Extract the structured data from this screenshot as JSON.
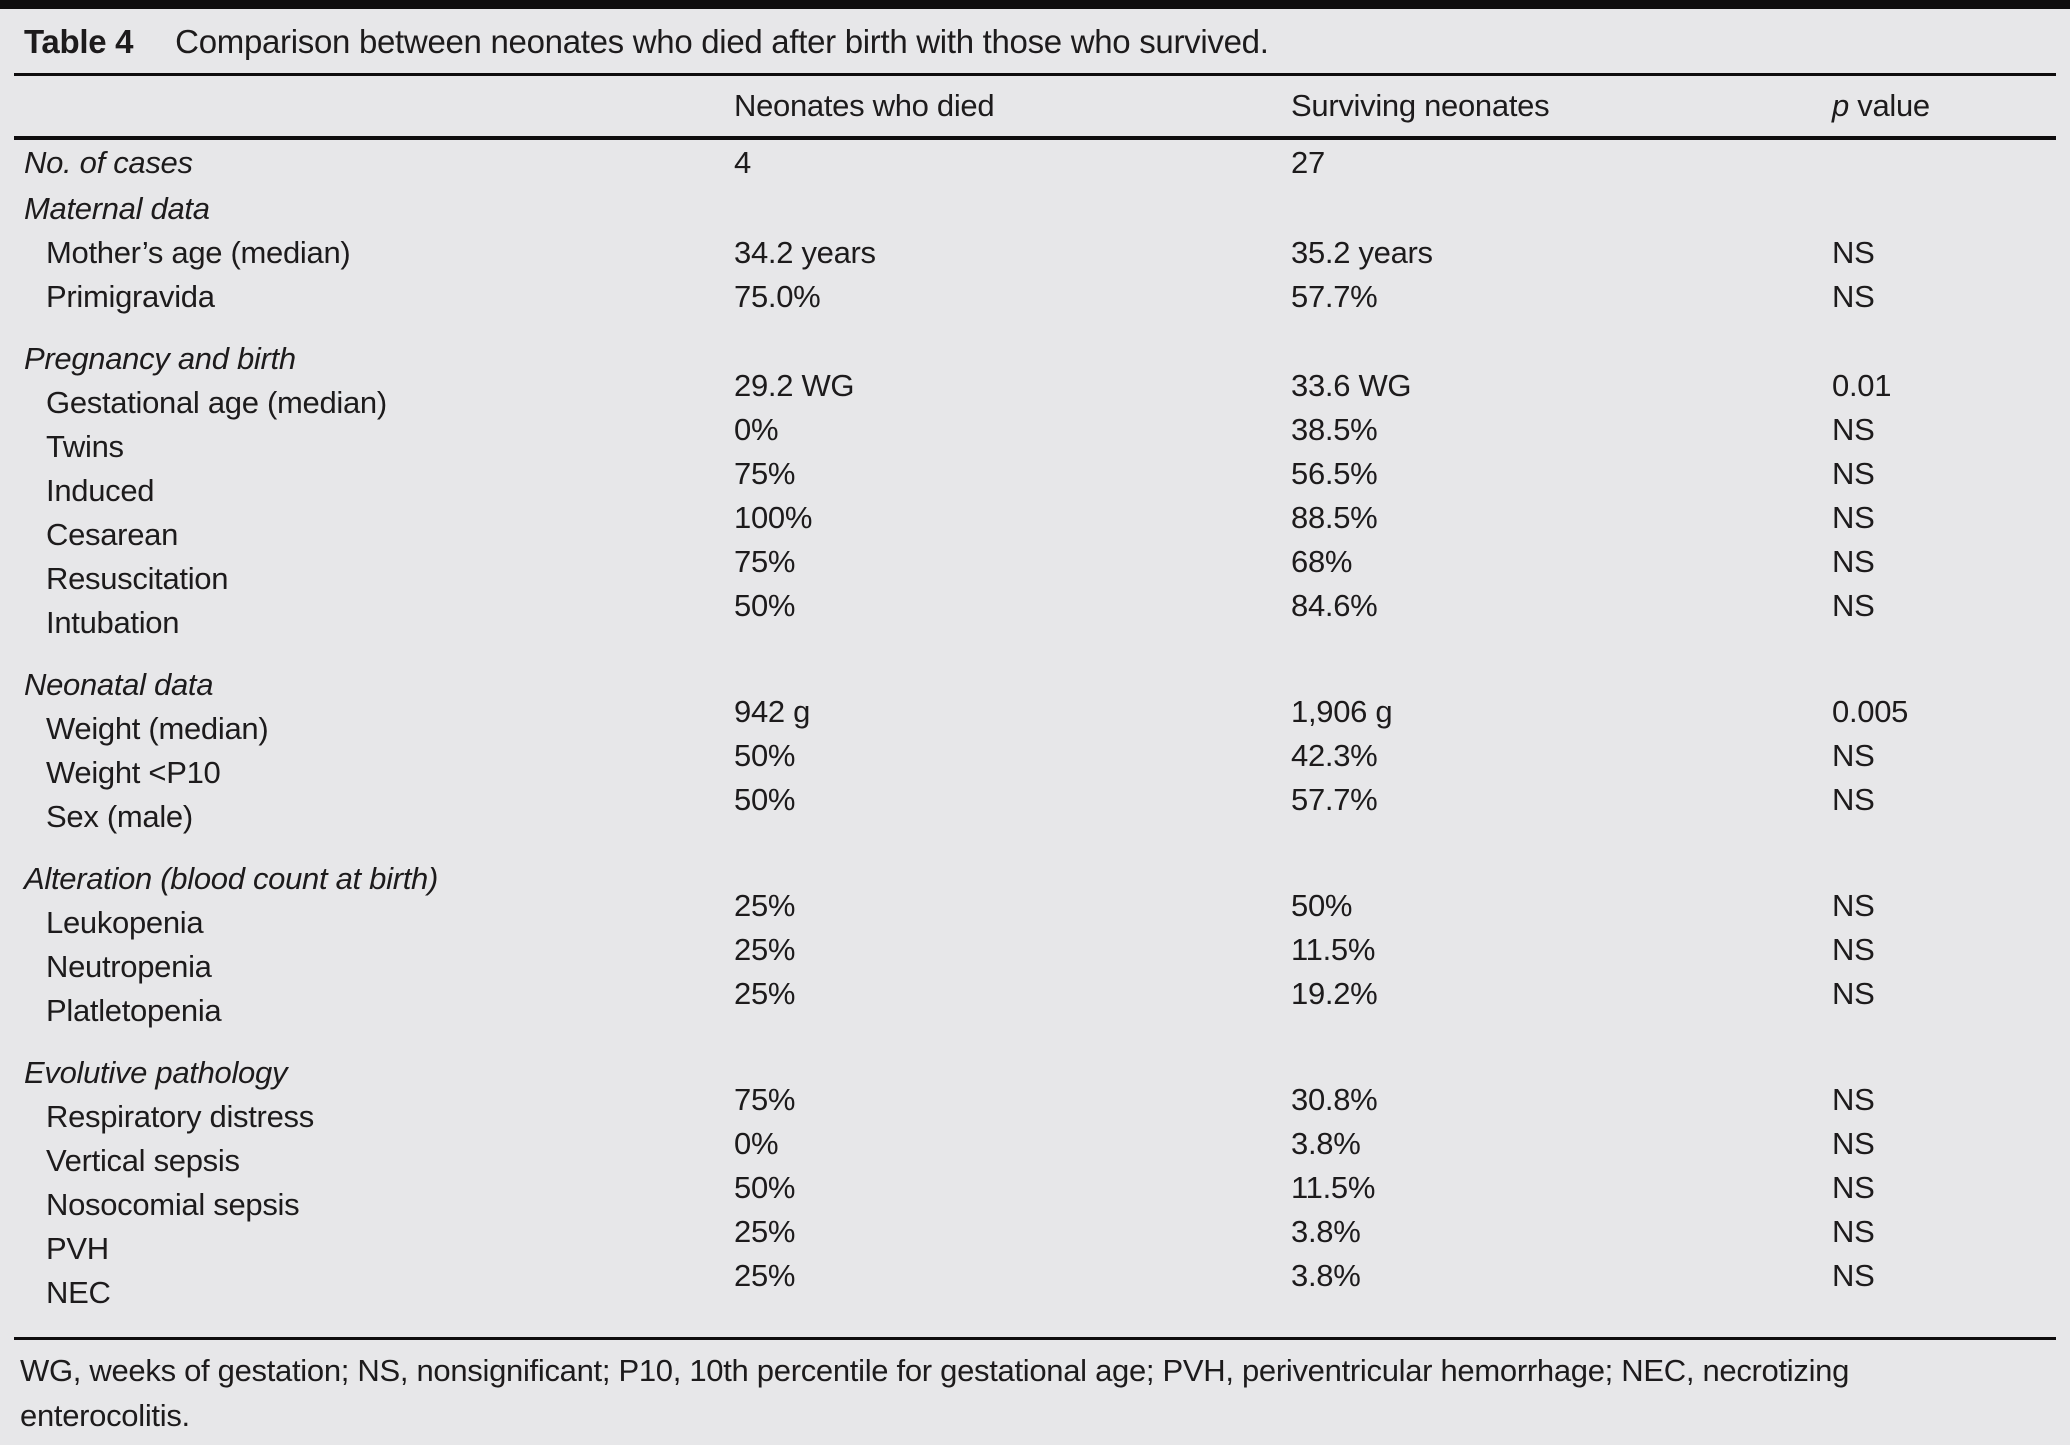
{
  "table": {
    "title_label": "Table 4",
    "title_caption": "Comparison between neonates who died after birth with those who survived.",
    "columns": {
      "label": "",
      "died": "Neonates who died",
      "survived": "Surviving neonates",
      "p_prefix": "p",
      "p_suffix": " value"
    },
    "sections": [
      {
        "header": "",
        "offset": false,
        "rows": [
          {
            "label": "No. of cases",
            "italic": true,
            "indent": false,
            "died": "4",
            "survived": "27",
            "p": ""
          }
        ]
      },
      {
        "header": "Maternal data",
        "offset": false,
        "rows": [
          {
            "label": "Mother’s age (median)",
            "died": "34.2 years",
            "survived": "35.2 years",
            "p": "NS"
          },
          {
            "label": "Primigravida",
            "died": "75.0%",
            "survived": "57.7%",
            "p": "NS"
          }
        ]
      },
      {
        "header": "Pregnancy and birth",
        "offset": true,
        "rows": [
          {
            "label": "Gestational age (median)",
            "died": "29.2 WG",
            "survived": "33.6 WG",
            "p": "0.01"
          },
          {
            "label": "Twins",
            "died": "0%",
            "survived": "38.5%",
            "p": "NS"
          },
          {
            "label": "Induced",
            "died": "75%",
            "survived": "56.5%",
            "p": "NS"
          },
          {
            "label": "Cesarean",
            "died": "100%",
            "survived": "88.5%",
            "p": "NS"
          },
          {
            "label": "Resuscitation",
            "died": "75%",
            "survived": "68%",
            "p": "NS"
          },
          {
            "label": "Intubation",
            "died": "50%",
            "survived": "84.6%",
            "p": "NS"
          }
        ]
      },
      {
        "header": "Neonatal data",
        "offset": true,
        "rows": [
          {
            "label": "Weight (median)",
            "died": "942 g",
            "survived": "1,906 g",
            "p": "0.005"
          },
          {
            "label": "Weight <P10",
            "died": "50%",
            "survived": "42.3%",
            "p": "NS"
          },
          {
            "label": "Sex (male)",
            "died": "50%",
            "survived": "57.7%",
            "p": "NS"
          }
        ]
      },
      {
        "header": "Alteration (blood count at birth)",
        "offset": true,
        "rows": [
          {
            "label": "Leukopenia",
            "died": "25%",
            "survived": "50%",
            "p": "NS"
          },
          {
            "label": "Neutropenia",
            "died": "25%",
            "survived": "11.5%",
            "p": "NS"
          },
          {
            "label": "Platletopenia",
            "died": "25%",
            "survived": "19.2%",
            "p": "NS"
          }
        ]
      },
      {
        "header": "Evolutive pathology",
        "offset": true,
        "rows": [
          {
            "label": "Respiratory distress",
            "died": "75%",
            "survived": "30.8%",
            "p": "NS"
          },
          {
            "label": "Vertical sepsis",
            "died": "0%",
            "survived": "3.8%",
            "p": "NS"
          },
          {
            "label": "Nosocomial sepsis",
            "died": "50%",
            "survived": "11.5%",
            "p": "NS"
          },
          {
            "label": "PVH",
            "died": "25%",
            "survived": "3.8%",
            "p": "NS"
          },
          {
            "label": "NEC",
            "died": "25%",
            "survived": "3.8%",
            "p": "NS"
          }
        ]
      }
    ],
    "footnote": "WG, weeks of gestation; NS, nonsignificant; P10, 10th percentile for gestational age; PVH, periventricular hemorrhage; NEC, necrotizing enterocolitis."
  }
}
